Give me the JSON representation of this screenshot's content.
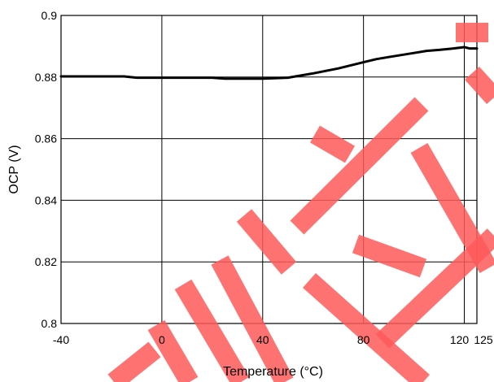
{
  "chart_data": {
    "type": "line",
    "title": "",
    "xlabel": "Temperature (°C)",
    "ylabel": "OCP (V)",
    "xlim": [
      -40,
      125
    ],
    "ylim": [
      0.8,
      0.9
    ],
    "grid": true,
    "x_ticks": [
      -40,
      0,
      40,
      80,
      120,
      125
    ],
    "x_tick_labels": [
      "-40",
      "0",
      "40",
      "80",
      "120",
      "125"
    ],
    "y_ticks": [
      0.8,
      0.82,
      0.84,
      0.86,
      0.88,
      0.9
    ],
    "y_tick_labels": [
      "0.8",
      "0.82",
      "0.84",
      "0.86",
      "0.88",
      "0.9"
    ],
    "series": [
      {
        "x": [
          -40,
          -30,
          -20,
          -15,
          -10,
          0,
          10,
          20,
          25,
          30,
          40,
          50,
          60,
          70,
          80,
          85,
          90,
          100,
          105,
          110,
          115,
          118,
          120,
          122,
          125
        ],
        "y": [
          0.8802,
          0.8802,
          0.8802,
          0.8802,
          0.8798,
          0.8798,
          0.8798,
          0.8798,
          0.8795,
          0.8795,
          0.8795,
          0.8798,
          0.8812,
          0.8828,
          0.8848,
          0.8858,
          0.8865,
          0.8878,
          0.8885,
          0.8888,
          0.8892,
          0.8895,
          0.8897,
          0.8893,
          0.8893
        ],
        "color": "#000000"
      }
    ]
  },
  "watermark_color": "#ff5a5a"
}
